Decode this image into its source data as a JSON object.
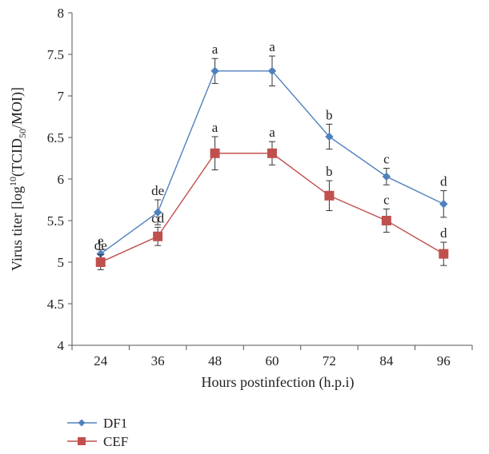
{
  "chart_data": {
    "type": "line",
    "xlabel": "Hours postinfection (h.p.i)",
    "ylabel_parts": {
      "prefix": "Virus titer [log",
      "sup": "10",
      "mid": "(TCID",
      "sub": "50",
      "suffix": "/MOI)]"
    },
    "categories": [
      "24",
      "36",
      "48",
      "60",
      "72",
      "84",
      "96"
    ],
    "ylim": [
      4,
      8
    ],
    "y_ticks": [
      "4",
      "4.5",
      "5",
      "5.5",
      "6",
      "6.5",
      "7",
      "7.5",
      "8"
    ],
    "grid": false,
    "legend_position": "bottom-left",
    "series": [
      {
        "name": "DF1",
        "color": "#4f81bd",
        "marker": "diamond",
        "values": [
          5.1,
          5.6,
          7.3,
          7.3,
          6.51,
          6.03,
          5.7
        ],
        "errors": [
          0.05,
          0.15,
          0.15,
          0.18,
          0.15,
          0.1,
          0.16
        ],
        "labels": [
          "e",
          "de",
          "a",
          "a",
          "b",
          "c",
          "d"
        ]
      },
      {
        "name": "CEF",
        "color": "#c0504d",
        "marker": "square",
        "values": [
          5.0,
          5.31,
          6.31,
          6.31,
          5.8,
          5.5,
          5.1
        ],
        "errors": [
          0.09,
          0.11,
          0.2,
          0.14,
          0.18,
          0.14,
          0.14
        ],
        "labels": [
          "de",
          "cd",
          "a",
          "a",
          "b",
          "c",
          "d"
        ]
      }
    ]
  }
}
